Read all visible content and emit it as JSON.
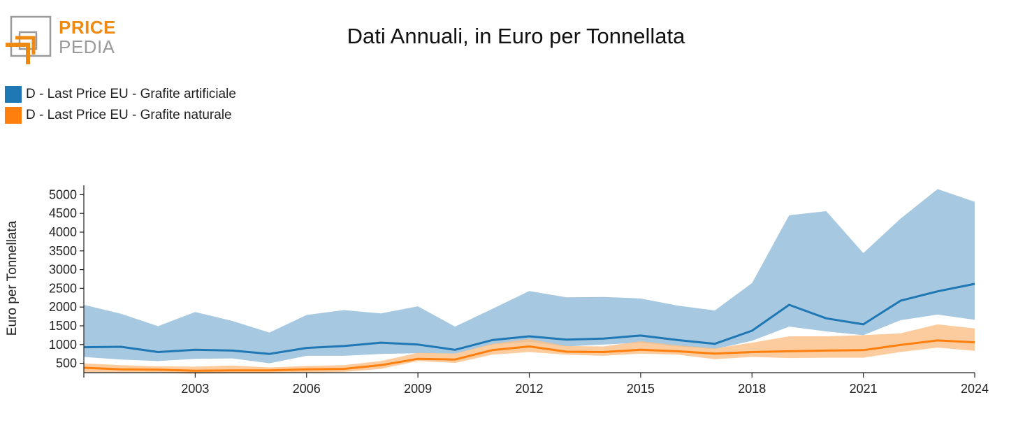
{
  "logo": {
    "line1": "PRICE",
    "line2": "PEDIA"
  },
  "chart_data": {
    "type": "line",
    "title": "Dati Annuali, in Euro per Tonnellata",
    "ylabel": "Euro per Tonnellata",
    "xlabel": "",
    "xlim": [
      2000,
      2024
    ],
    "ylim": [
      250,
      5250
    ],
    "x_ticks": [
      2003,
      2006,
      2009,
      2012,
      2015,
      2018,
      2021,
      2024
    ],
    "y_ticks": [
      500,
      1000,
      1500,
      2000,
      2500,
      3000,
      3500,
      4000,
      4500,
      5000
    ],
    "legend_position": "top-left",
    "grid": false,
    "x": [
      2000,
      2001,
      2002,
      2003,
      2004,
      2005,
      2006,
      2007,
      2008,
      2009,
      2010,
      2011,
      2012,
      2013,
      2014,
      2015,
      2016,
      2017,
      2018,
      2019,
      2020,
      2021,
      2022,
      2023,
      2024
    ],
    "series": [
      {
        "name": "D - Last Price EU - Grafite artificiale",
        "color": "#1f77b4",
        "band_color": "#a6c8e0",
        "values": [
          930,
          940,
          800,
          860,
          840,
          750,
          910,
          960,
          1050,
          1000,
          860,
          1120,
          1220,
          1130,
          1160,
          1240,
          1120,
          1020,
          1370,
          2060,
          1700,
          1540,
          2170,
          2420,
          2620
        ],
        "lower": [
          670,
          600,
          560,
          620,
          630,
          500,
          700,
          700,
          750,
          770,
          760,
          1000,
          1070,
          950,
          1000,
          1050,
          950,
          880,
          1100,
          1480,
          1350,
          1250,
          1650,
          1800,
          1660
        ],
        "upper": [
          2060,
          1820,
          1490,
          1870,
          1630,
          1320,
          1790,
          1920,
          1830,
          2020,
          1480,
          1950,
          2430,
          2260,
          2270,
          2230,
          2040,
          1910,
          2640,
          4450,
          4560,
          3440,
          4360,
          5150,
          4810
        ]
      },
      {
        "name": "D - Last Price EU - Grafite naturale",
        "color": "#ff7f0e",
        "band_color": "#fdbf86",
        "values": [
          380,
          340,
          330,
          300,
          310,
          310,
          340,
          350,
          450,
          620,
          600,
          850,
          950,
          810,
          800,
          860,
          820,
          760,
          800,
          820,
          840,
          850,
          990,
          1110,
          1060
        ],
        "lower": [
          260,
          240,
          240,
          220,
          230,
          230,
          250,
          270,
          350,
          560,
          510,
          730,
          800,
          730,
          700,
          760,
          730,
          610,
          670,
          640,
          650,
          650,
          800,
          920,
          830
        ],
        "upper": [
          500,
          450,
          420,
          410,
          440,
          390,
          430,
          450,
          560,
          780,
          760,
          1020,
          1150,
          960,
          950,
          1090,
          980,
          900,
          1050,
          1220,
          1220,
          1250,
          1300,
          1540,
          1430
        ]
      }
    ]
  }
}
